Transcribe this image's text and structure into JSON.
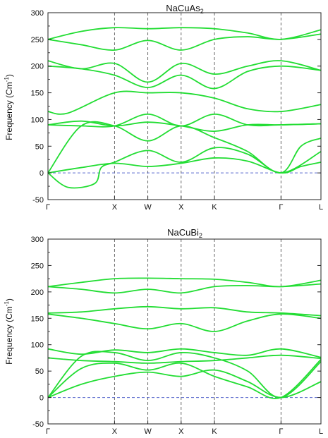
{
  "chart_data": [
    {
      "type": "line",
      "title_main": "NaCuAs",
      "title_sub": "2",
      "ylabel_main": "Frequency (Cm",
      "ylabel_sup": "-1",
      "ylabel_close": ")",
      "ylim": [
        -50,
        300
      ],
      "yticks": [
        -50,
        0,
        50,
        100,
        150,
        200,
        250,
        300
      ],
      "x_symmetry_points": [
        {
          "label": "Γ",
          "x": 0.0
        },
        {
          "label": "X",
          "x": 1.0
        },
        {
          "label": "W",
          "x": 1.5
        },
        {
          "label": "X",
          "x": 2.0
        },
        {
          "label": "K",
          "x": 2.5
        },
        {
          "label": "Γ",
          "x": 3.5
        },
        {
          "label": "L",
          "x": 4.1
        }
      ],
      "zero_line": 0,
      "line_color": "#22dd33",
      "series": [
        {
          "x": [
            0,
            0.3,
            0.7,
            0.8,
            1.0,
            1.5,
            2.0,
            2.5,
            3.0,
            3.5,
            3.8,
            4.1
          ],
          "values": [
            0,
            -27,
            -20,
            10,
            20,
            42,
            20,
            47,
            35,
            0,
            50,
            65
          ]
        },
        {
          "x": [
            0,
            0.5,
            1.0,
            1.5,
            2.0,
            2.5,
            3.0,
            3.5,
            3.8,
            4.1
          ],
          "values": [
            0,
            10,
            18,
            12,
            18,
            28,
            22,
            0,
            12,
            20
          ]
        },
        {
          "x": [
            0,
            0.5,
            1.0,
            1.5,
            2.0,
            2.5,
            3.0,
            3.5,
            4.1
          ],
          "values": [
            0,
            88,
            88,
            60,
            88,
            66,
            40,
            0,
            40
          ]
        },
        {
          "x": [
            0,
            0.5,
            1.0,
            1.5,
            2.0,
            2.5,
            3.0,
            3.5,
            4.1
          ],
          "values": [
            90,
            97,
            88,
            95,
            88,
            78,
            90,
            90,
            92
          ]
        },
        {
          "x": [
            0,
            0.5,
            1.0,
            1.5,
            2.0,
            2.5,
            3.0,
            3.5,
            4.1
          ],
          "values": [
            90,
            88,
            88,
            110,
            88,
            110,
            90,
            90,
            92
          ]
        },
        {
          "x": [
            0,
            0.3,
            1.0,
            1.5,
            2.0,
            2.5,
            3.0,
            3.5,
            4.1
          ],
          "values": [
            115,
            112,
            150,
            150,
            150,
            140,
            120,
            115,
            128
          ]
        },
        {
          "x": [
            0,
            0.5,
            1.0,
            1.5,
            2.0,
            2.5,
            3.0,
            3.5,
            4.1
          ],
          "values": [
            200,
            195,
            183,
            160,
            183,
            158,
            190,
            200,
            192
          ]
        },
        {
          "x": [
            0,
            0.5,
            1.0,
            1.5,
            2.0,
            2.5,
            3.0,
            3.5,
            4.1
          ],
          "values": [
            210,
            195,
            205,
            170,
            205,
            185,
            200,
            210,
            192
          ]
        },
        {
          "x": [
            0,
            0.5,
            1.0,
            1.5,
            2.0,
            2.5,
            3.0,
            3.5,
            4.1
          ],
          "values": [
            250,
            240,
            230,
            248,
            230,
            250,
            255,
            250,
            260
          ]
        },
        {
          "x": [
            0,
            0.5,
            1.0,
            1.5,
            2.0,
            2.5,
            3.0,
            3.5,
            4.1
          ],
          "values": [
            250,
            265,
            272,
            270,
            272,
            270,
            262,
            250,
            268
          ]
        }
      ]
    },
    {
      "type": "line",
      "title_main": "NaCuBi",
      "title_sub": "2",
      "ylabel_main": "Frequency (Cm",
      "ylabel_sup": "-1",
      "ylabel_close": ")",
      "ylim": [
        -50,
        300
      ],
      "yticks": [
        -50,
        0,
        50,
        100,
        150,
        200,
        250,
        300
      ],
      "x_symmetry_points": [
        {
          "label": "Γ",
          "x": 0.0
        },
        {
          "label": "X",
          "x": 1.0
        },
        {
          "label": "W",
          "x": 1.5
        },
        {
          "label": "X",
          "x": 2.0
        },
        {
          "label": "K",
          "x": 2.5
        },
        {
          "label": "Γ",
          "x": 3.5
        },
        {
          "label": "L",
          "x": 4.1
        }
      ],
      "zero_line": 0,
      "line_color": "#22dd33",
      "series": [
        {
          "x": [
            0,
            0.5,
            1.0,
            1.5,
            2.0,
            2.5,
            3.0,
            3.5,
            4.1
          ],
          "values": [
            0,
            25,
            40,
            48,
            40,
            52,
            30,
            0,
            30
          ]
        },
        {
          "x": [
            0,
            0.5,
            1.0,
            1.5,
            2.0,
            2.5,
            3.0,
            3.5,
            4.1
          ],
          "values": [
            0,
            55,
            65,
            52,
            65,
            40,
            20,
            0,
            72
          ]
        },
        {
          "x": [
            0,
            0.5,
            1.0,
            1.5,
            2.0,
            2.5,
            3.0,
            3.5,
            4.1
          ],
          "values": [
            0,
            78,
            85,
            70,
            85,
            75,
            50,
            0,
            68
          ]
        },
        {
          "x": [
            0,
            0.5,
            1.0,
            1.5,
            2.0,
            2.5,
            3.0,
            3.5,
            4.1
          ],
          "values": [
            75,
            70,
            68,
            65,
            68,
            70,
            75,
            80,
            74
          ]
        },
        {
          "x": [
            0,
            0.5,
            1.0,
            1.5,
            2.0,
            2.5,
            3.0,
            3.5,
            4.1
          ],
          "values": [
            92,
            82,
            90,
            85,
            92,
            85,
            80,
            92,
            76
          ]
        },
        {
          "x": [
            0,
            0.5,
            1.0,
            1.5,
            2.0,
            2.5,
            3.0,
            3.5,
            4.1
          ],
          "values": [
            158,
            150,
            140,
            130,
            140,
            125,
            145,
            158,
            150
          ]
        },
        {
          "x": [
            0,
            0.5,
            1.0,
            1.5,
            2.0,
            2.5,
            3.0,
            3.5,
            4.1
          ],
          "values": [
            160,
            162,
            168,
            172,
            168,
            170,
            162,
            160,
            155
          ]
        },
        {
          "x": [
            0,
            0.5,
            1.0,
            1.5,
            2.0,
            2.5,
            3.0,
            3.5,
            4.1
          ],
          "values": [
            210,
            205,
            198,
            205,
            198,
            210,
            212,
            210,
            215
          ]
        },
        {
          "x": [
            0,
            0.5,
            1.0,
            1.5,
            2.0,
            2.5,
            3.0,
            3.5,
            4.1
          ],
          "values": [
            210,
            218,
            225,
            226,
            225,
            224,
            218,
            210,
            222
          ]
        }
      ]
    }
  ]
}
